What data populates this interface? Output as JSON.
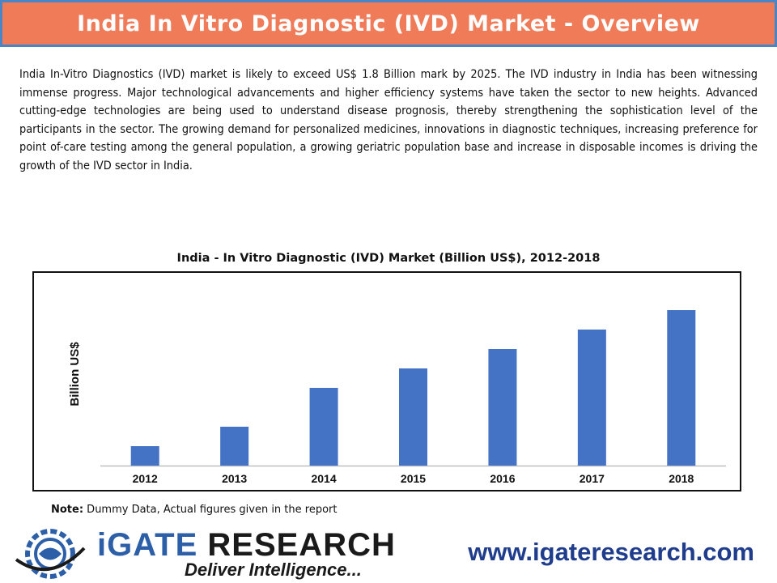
{
  "header": {
    "title": "India In Vitro Diagnostic (IVD) Market - Overview",
    "colors": {
      "background": "#ef7b58",
      "border": "#4a86c5",
      "text": "#ffffff"
    }
  },
  "intro": {
    "paragraph": "India In-Vitro Diagnostics (IVD) market is likely to exceed US$ 1.8 Billion mark by 2025. The IVD industry in India has been witnessing immense progress. Major technological advancements and higher efficiency systems have taken the sector to new heights. Advanced cutting-edge technologies are being used to understand disease prognosis, thereby strengthening the sophistication level of the participants in the sector. The growing demand for personalized medicines, innovations in diagnostic techniques, increasing preference for point of-care testing among the general population, a growing geriatric population base and increase in disposable incomes is driving the growth of the IVD sector in India."
  },
  "chart_data": {
    "type": "bar",
    "title": "India - In Vitro Diagnostic (IVD) Market (Billion US$), 2012-2018",
    "xlabel": "",
    "ylabel": "Billion US$",
    "categories": [
      "2012",
      "2013",
      "2014",
      "2015",
      "2016",
      "2017",
      "2018"
    ],
    "values": [
      1,
      2,
      4,
      5,
      6,
      7,
      8
    ],
    "ylim": [
      0,
      9
    ],
    "grid": false,
    "legend": "none",
    "bar_color": "#4472c4"
  },
  "note": {
    "label": "Note:",
    "text": " Dummy Data, Actual figures given in the report"
  },
  "footer": {
    "logo_main_1": "iGATE",
    "logo_main_2": " RESEARCH",
    "logo_tagline": "Deliver Intelligence...",
    "website": "www.igateresearch.com",
    "colors": {
      "website": "#1f3d8c",
      "logo_blue": "#2c5fa8"
    }
  }
}
